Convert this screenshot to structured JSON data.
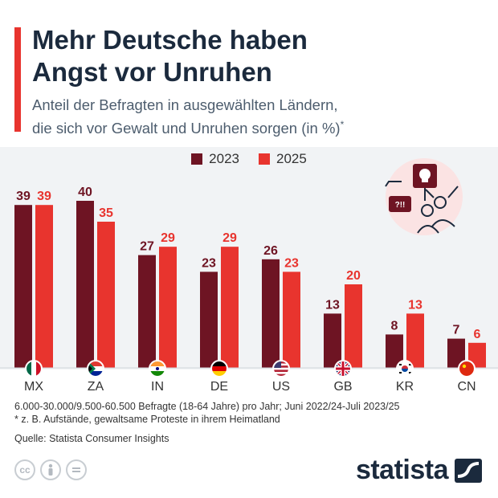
{
  "header": {
    "title_line1": "Mehr Deutsche haben",
    "title_line2": "Angst vor Unruhen",
    "subtitle_line1": "Anteil der Befragten in ausgewählten Ländern,",
    "subtitle_line2": "die sich vor Gewalt und Unruhen sorgen (in %)",
    "subtitle_mark": "*"
  },
  "legend": [
    {
      "label": "2023",
      "color": "#6e1423"
    },
    {
      "label": "2025",
      "color": "#e8342e"
    }
  ],
  "chart_data": {
    "type": "bar",
    "categories": [
      "MX",
      "ZA",
      "IN",
      "DE",
      "US",
      "GB",
      "KR",
      "CN"
    ],
    "series": [
      {
        "name": "2023",
        "values": [
          39,
          40,
          27,
          23,
          26,
          13,
          8,
          7
        ],
        "color": "#6e1423"
      },
      {
        "name": "2025",
        "values": [
          39,
          35,
          29,
          29,
          23,
          20,
          13,
          6
        ],
        "color": "#e8342e"
      }
    ],
    "flags": [
      "flag-mexico-icon",
      "flag-south-africa-icon",
      "flag-india-icon",
      "flag-germany-icon",
      "flag-usa-icon",
      "flag-uk-icon",
      "flag-south-korea-icon",
      "flag-china-icon"
    ],
    "ylim": [
      0,
      40
    ],
    "grid": false,
    "legend_position": "top-center"
  },
  "footer": {
    "note1": "6.000-30.000/9.500-60.500 Befragte (18-64 Jahre) pro Jahr; Juni 2022/24-Juli 2023/25",
    "note2": "* z. B. Aufstände, gewaltsame Proteste in ihrem Heimatland",
    "source": "Quelle: Statista Consumer Insights",
    "brand": "statista"
  },
  "illustration": {
    "icons": [
      "skull-sign-icon",
      "speech-bubble-icon",
      "protest-people-icon"
    ],
    "bubble_text": "?!!"
  }
}
